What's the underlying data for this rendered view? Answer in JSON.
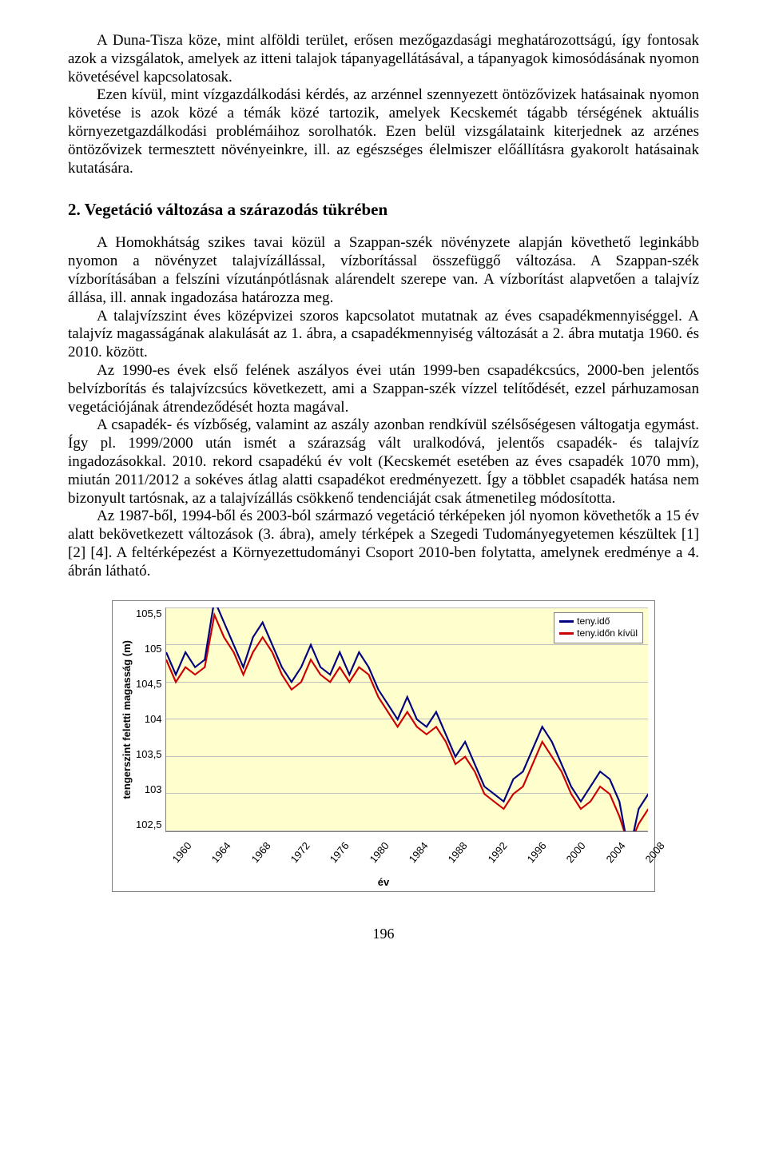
{
  "paragraphs": {
    "p1": "A Duna-Tisza köze, mint alföldi terület, erősen mezőgazdasági meghatározottságú, így fontosak azok a vizsgálatok, amelyek az itteni talajok tápanyagellátásával, a tápanyagok kimosódásának nyomon követésével kapcsolatosak.",
    "p2": "Ezen kívül, mint vízgazdálkodási kérdés, az arzénnel szennyezett öntözővizek hatásainak nyomon követése is azok közé a témák közé tartozik, amelyek Kecskemét tágabb térségének aktuális környezetgazdálkodási problémáihoz sorolhatók. Ezen belül vizsgálataink kiterjednek az arzénes öntözővizek termesztett növényeinkre, ill. az egészséges élelmiszer előállításra gyakorolt hatásainak kutatására.",
    "heading": "2. Vegetáció változása a szárazodás tükrében",
    "p3": "A Homokhátság szikes tavai közül a Szappan-szék növényzete alapján követhető leginkább nyomon a növényzet talajvízállással, vízborítással összefüggő változása. A Szappan-szék vízborításában a felszíni vízutánpótlásnak alárendelt szerepe van. A vízborítást alapvetően a talajvíz állása, ill. annak ingadozása határozza meg.",
    "p4": "A talajvízszint éves középvizei szoros kapcsolatot mutatnak az éves csapadékmennyiséggel. A talajvíz magasságának alakulását az 1. ábra, a csapadékmennyiség változását a 2. ábra mutatja 1960. és 2010. között.",
    "p5": "Az 1990-es évek első felének aszályos évei után 1999-ben csapadékcsúcs, 2000-ben jelentős belvízborítás és talajvízcsúcs következett, ami a Szappan-szék vízzel telítődését, ezzel párhuzamosan vegetációjának átrendeződését hozta magával.",
    "p6": "A csapadék- és vízbőség, valamint az aszály azonban rendkívül szélsőségesen váltogatja egymást. Így pl. 1999/2000 után ismét a szárazság vált uralkodóvá, jelentős csapadék- és talajvíz ingadozásokkal. 2010. rekord csapadékú év volt (Kecskemét esetében az éves csapadék 1070 mm), miután 2011/2012 a sokéves átlag alatti csapadékot eredményezett. Így a többlet csapadék hatása nem bizonyult tartósnak, az a talajvízállás csökkenő tendenciáját csak átmenetileg módosította.",
    "p7": "Az 1987-ből, 1994-ből és 2003-ból származó vegetáció térképeken jól nyomon követhetők a 15 év alatt bekövetkezett változások (3. ábra), amely térképek a Szegedi Tudományegyetemen készültek [1] [2] [4]. A feltérképezést a Környezettudományi Csoport 2010-ben folytatta, amelynek eredménye a 4. ábrán látható."
  },
  "chart": {
    "type": "line",
    "background_color": "#feffcd",
    "plot_border_color": "#808080",
    "grid_color": "#c0c0c0",
    "yaxis_label": "tengerszint feletti magasság (m)",
    "xaxis_label": "év",
    "ylim": [
      102,
      106
    ],
    "ytick_step": 0.5,
    "ytick_labels": [
      "105,5",
      "105",
      "104,5",
      "104",
      "103,5",
      "103",
      "102,5"
    ],
    "xtick_labels": [
      "1960",
      "1964",
      "1968",
      "1972",
      "1976",
      "1980",
      "1984",
      "1988",
      "1992",
      "1996",
      "2000",
      "2004",
      "2008"
    ],
    "legend": {
      "series1": {
        "label": "teny.idő",
        "color": "#000080"
      },
      "series2": {
        "label": "teny.időn kívül",
        "color": "#cc0000"
      }
    },
    "line_width": 2,
    "font_family": "Arial",
    "label_fontsize": 13,
    "series": {
      "years": [
        1960,
        1961,
        1962,
        1963,
        1964,
        1965,
        1966,
        1967,
        1968,
        1969,
        1970,
        1971,
        1972,
        1973,
        1974,
        1975,
        1976,
        1977,
        1978,
        1979,
        1980,
        1981,
        1982,
        1983,
        1984,
        1985,
        1986,
        1987,
        1988,
        1989,
        1990,
        1991,
        1992,
        1993,
        1994,
        1995,
        1996,
        1997,
        1998,
        1999,
        2000,
        2001,
        2002,
        2003,
        2004,
        2005,
        2006,
        2007,
        2008,
        2009,
        2010
      ],
      "teny_ido": [
        104.9,
        104.6,
        104.9,
        104.7,
        104.8,
        105.6,
        105.3,
        105.0,
        104.7,
        105.1,
        105.3,
        105.0,
        104.7,
        104.5,
        104.7,
        105.0,
        104.7,
        104.6,
        104.9,
        104.6,
        104.9,
        104.7,
        104.4,
        104.2,
        104.0,
        104.3,
        104.0,
        103.9,
        104.1,
        103.8,
        103.5,
        103.7,
        103.4,
        103.1,
        103.0,
        102.9,
        103.2,
        103.3,
        103.6,
        103.9,
        103.7,
        103.4,
        103.1,
        102.9,
        103.1,
        103.3,
        103.2,
        102.9,
        102.2,
        102.8,
        103.0
      ],
      "teny_idon_kivul": [
        104.8,
        104.5,
        104.7,
        104.6,
        104.7,
        105.4,
        105.1,
        104.9,
        104.6,
        104.9,
        105.1,
        104.9,
        104.6,
        104.4,
        104.5,
        104.8,
        104.6,
        104.5,
        104.7,
        104.5,
        104.7,
        104.6,
        104.3,
        104.1,
        103.9,
        104.1,
        103.9,
        103.8,
        103.9,
        103.7,
        103.4,
        103.5,
        103.3,
        103.0,
        102.9,
        102.8,
        103.0,
        103.1,
        103.4,
        103.7,
        103.5,
        103.3,
        103.0,
        102.8,
        102.9,
        103.1,
        103.0,
        102.7,
        102.3,
        102.6,
        102.8
      ]
    }
  },
  "page_number": "196",
  "colors": {
    "text": "#000000",
    "page_bg": "#ffffff"
  }
}
